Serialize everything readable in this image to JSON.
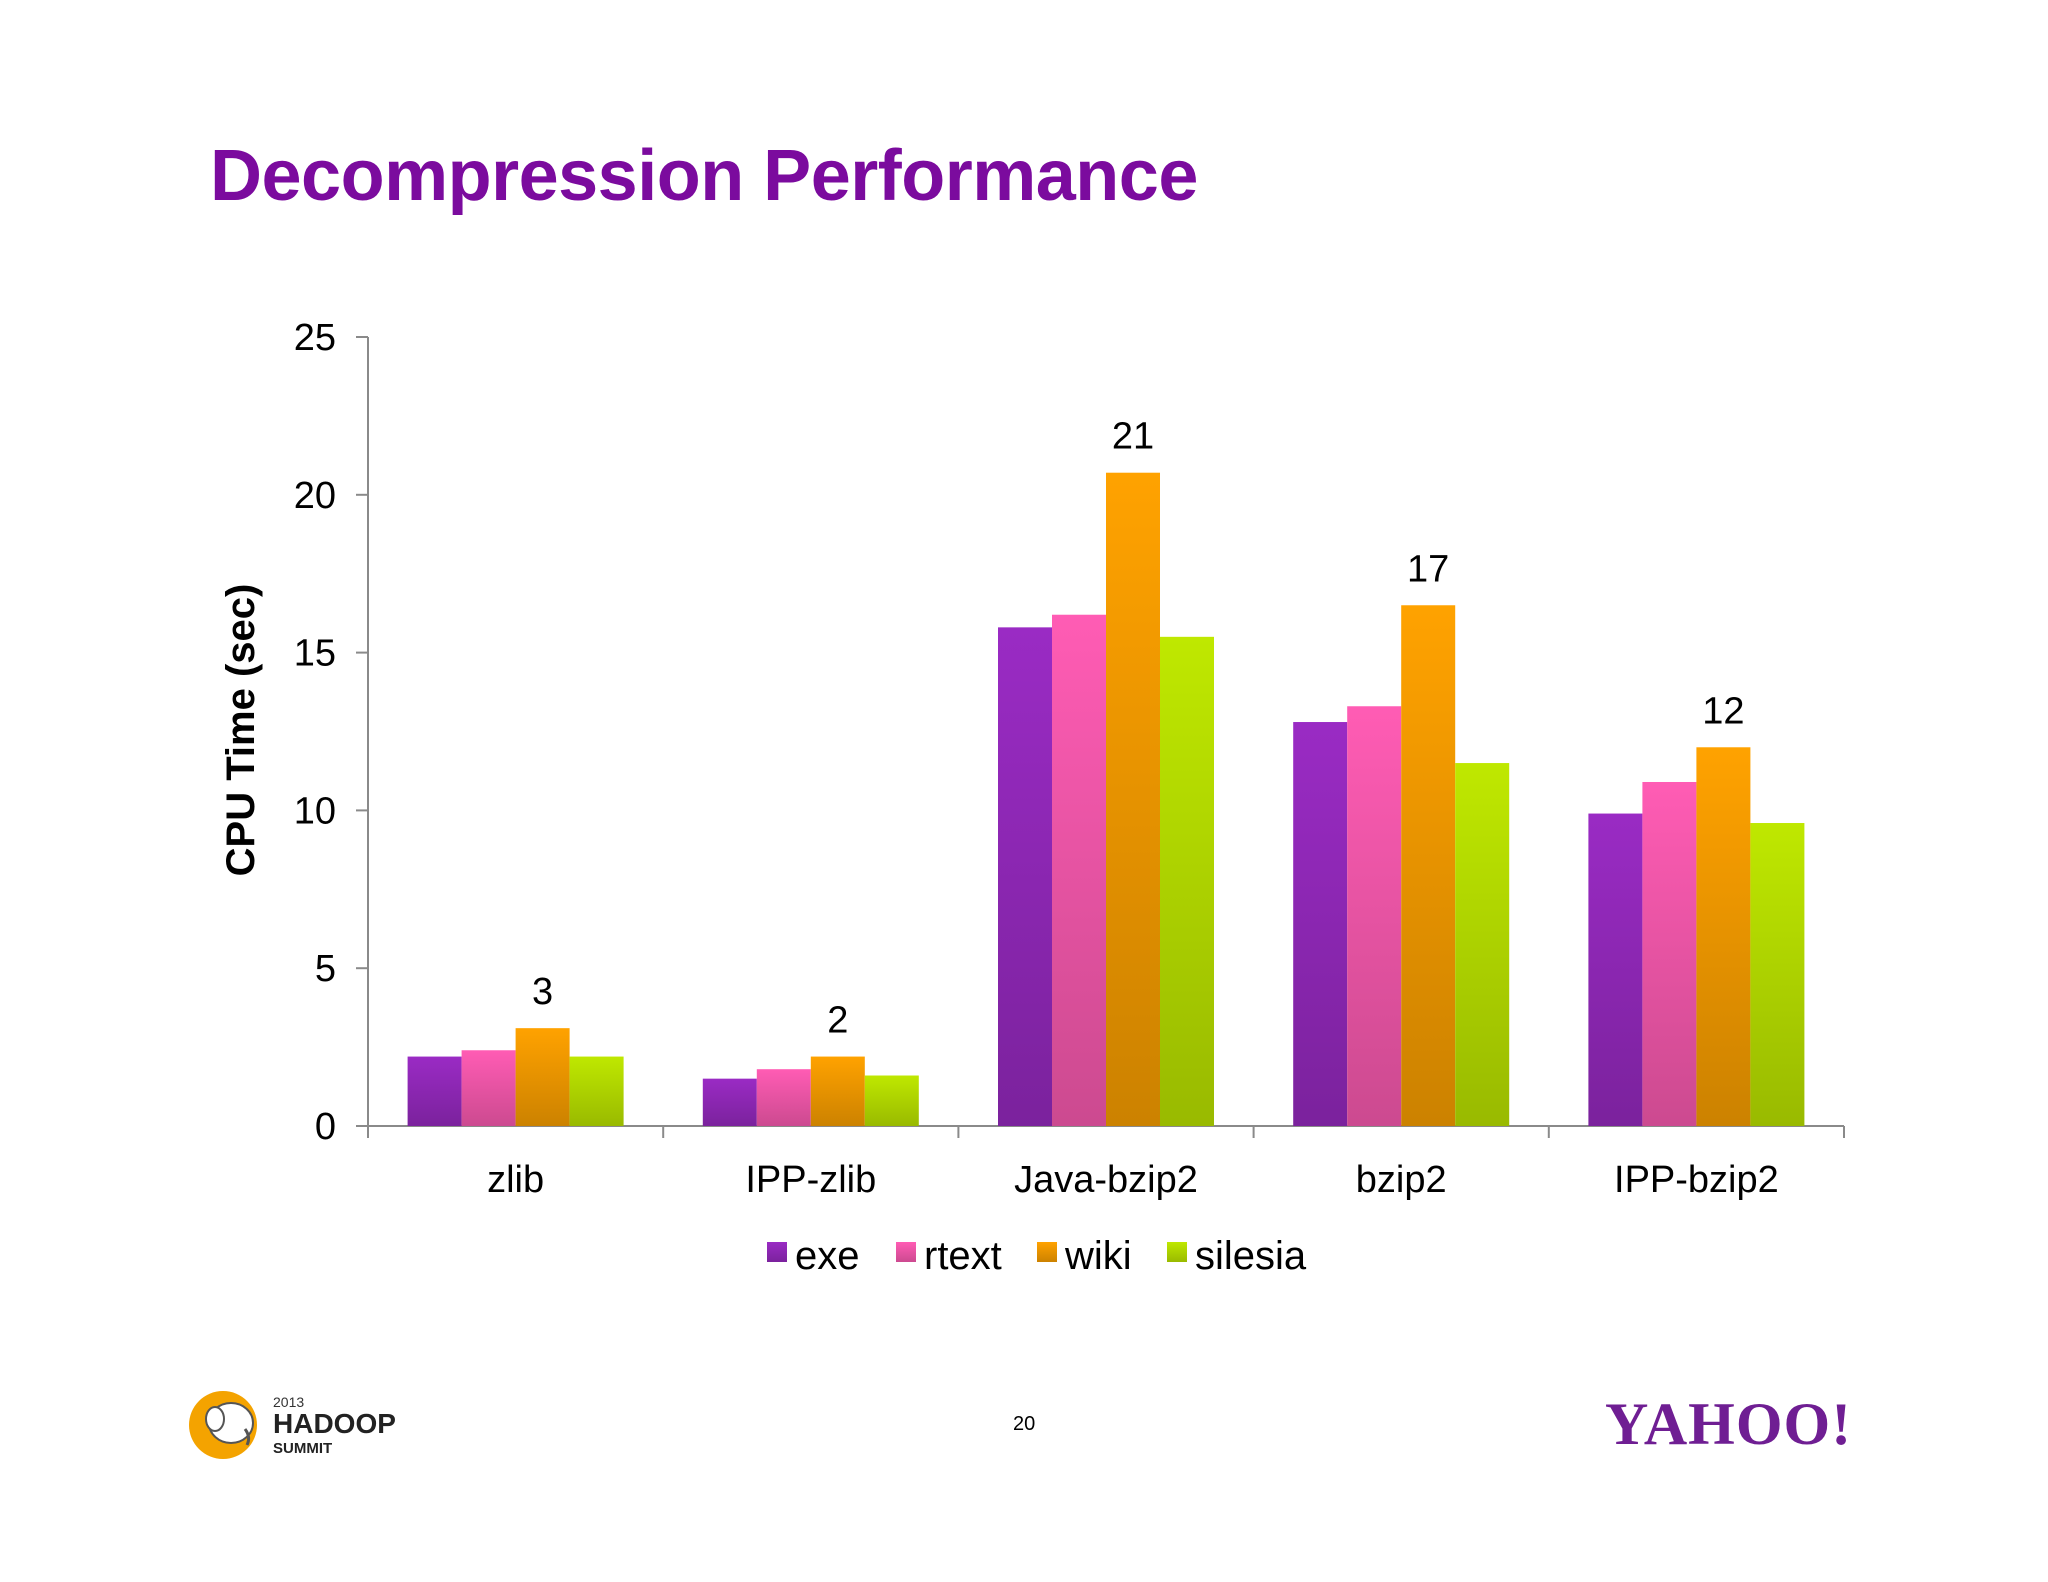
{
  "slide": {
    "title": "Decompression Performance",
    "page_number": "20",
    "logos": {
      "hadoop_year": "2013",
      "hadoop_name": "HADOOP",
      "hadoop_sub": "SUMMIT",
      "yahoo": "YAHOO!"
    }
  },
  "colors": {
    "title": "#7b0b9e",
    "exe": "#9a2bc4",
    "rtext": "#ff5cb4",
    "wiki": "#ffa200",
    "silesia": "#bfe800",
    "axis": "#8a8a8a"
  },
  "chart_data": {
    "type": "bar",
    "title": "",
    "xlabel": "",
    "ylabel": "CPU Time (sec)",
    "ylim": [
      0,
      25
    ],
    "yticks": [
      0,
      5,
      10,
      15,
      20,
      25
    ],
    "grid": false,
    "legend_position": "bottom",
    "categories": [
      "zlib",
      "IPP-zlib",
      "Java-bzip2",
      "bzip2",
      "IPP-bzip2"
    ],
    "series": [
      {
        "name": "exe",
        "values": [
          2.2,
          1.5,
          15.8,
          12.8,
          9.9
        ]
      },
      {
        "name": "rtext",
        "values": [
          2.4,
          1.8,
          16.2,
          13.3,
          10.9
        ]
      },
      {
        "name": "wiki",
        "values": [
          3.1,
          2.2,
          20.7,
          16.5,
          12.0
        ]
      },
      {
        "name": "silesia",
        "values": [
          2.2,
          1.6,
          15.5,
          11.5,
          9.6
        ]
      }
    ],
    "data_labels": {
      "series": "wiki",
      "texts": [
        "3",
        "2",
        "21",
        "17",
        "12"
      ]
    }
  }
}
